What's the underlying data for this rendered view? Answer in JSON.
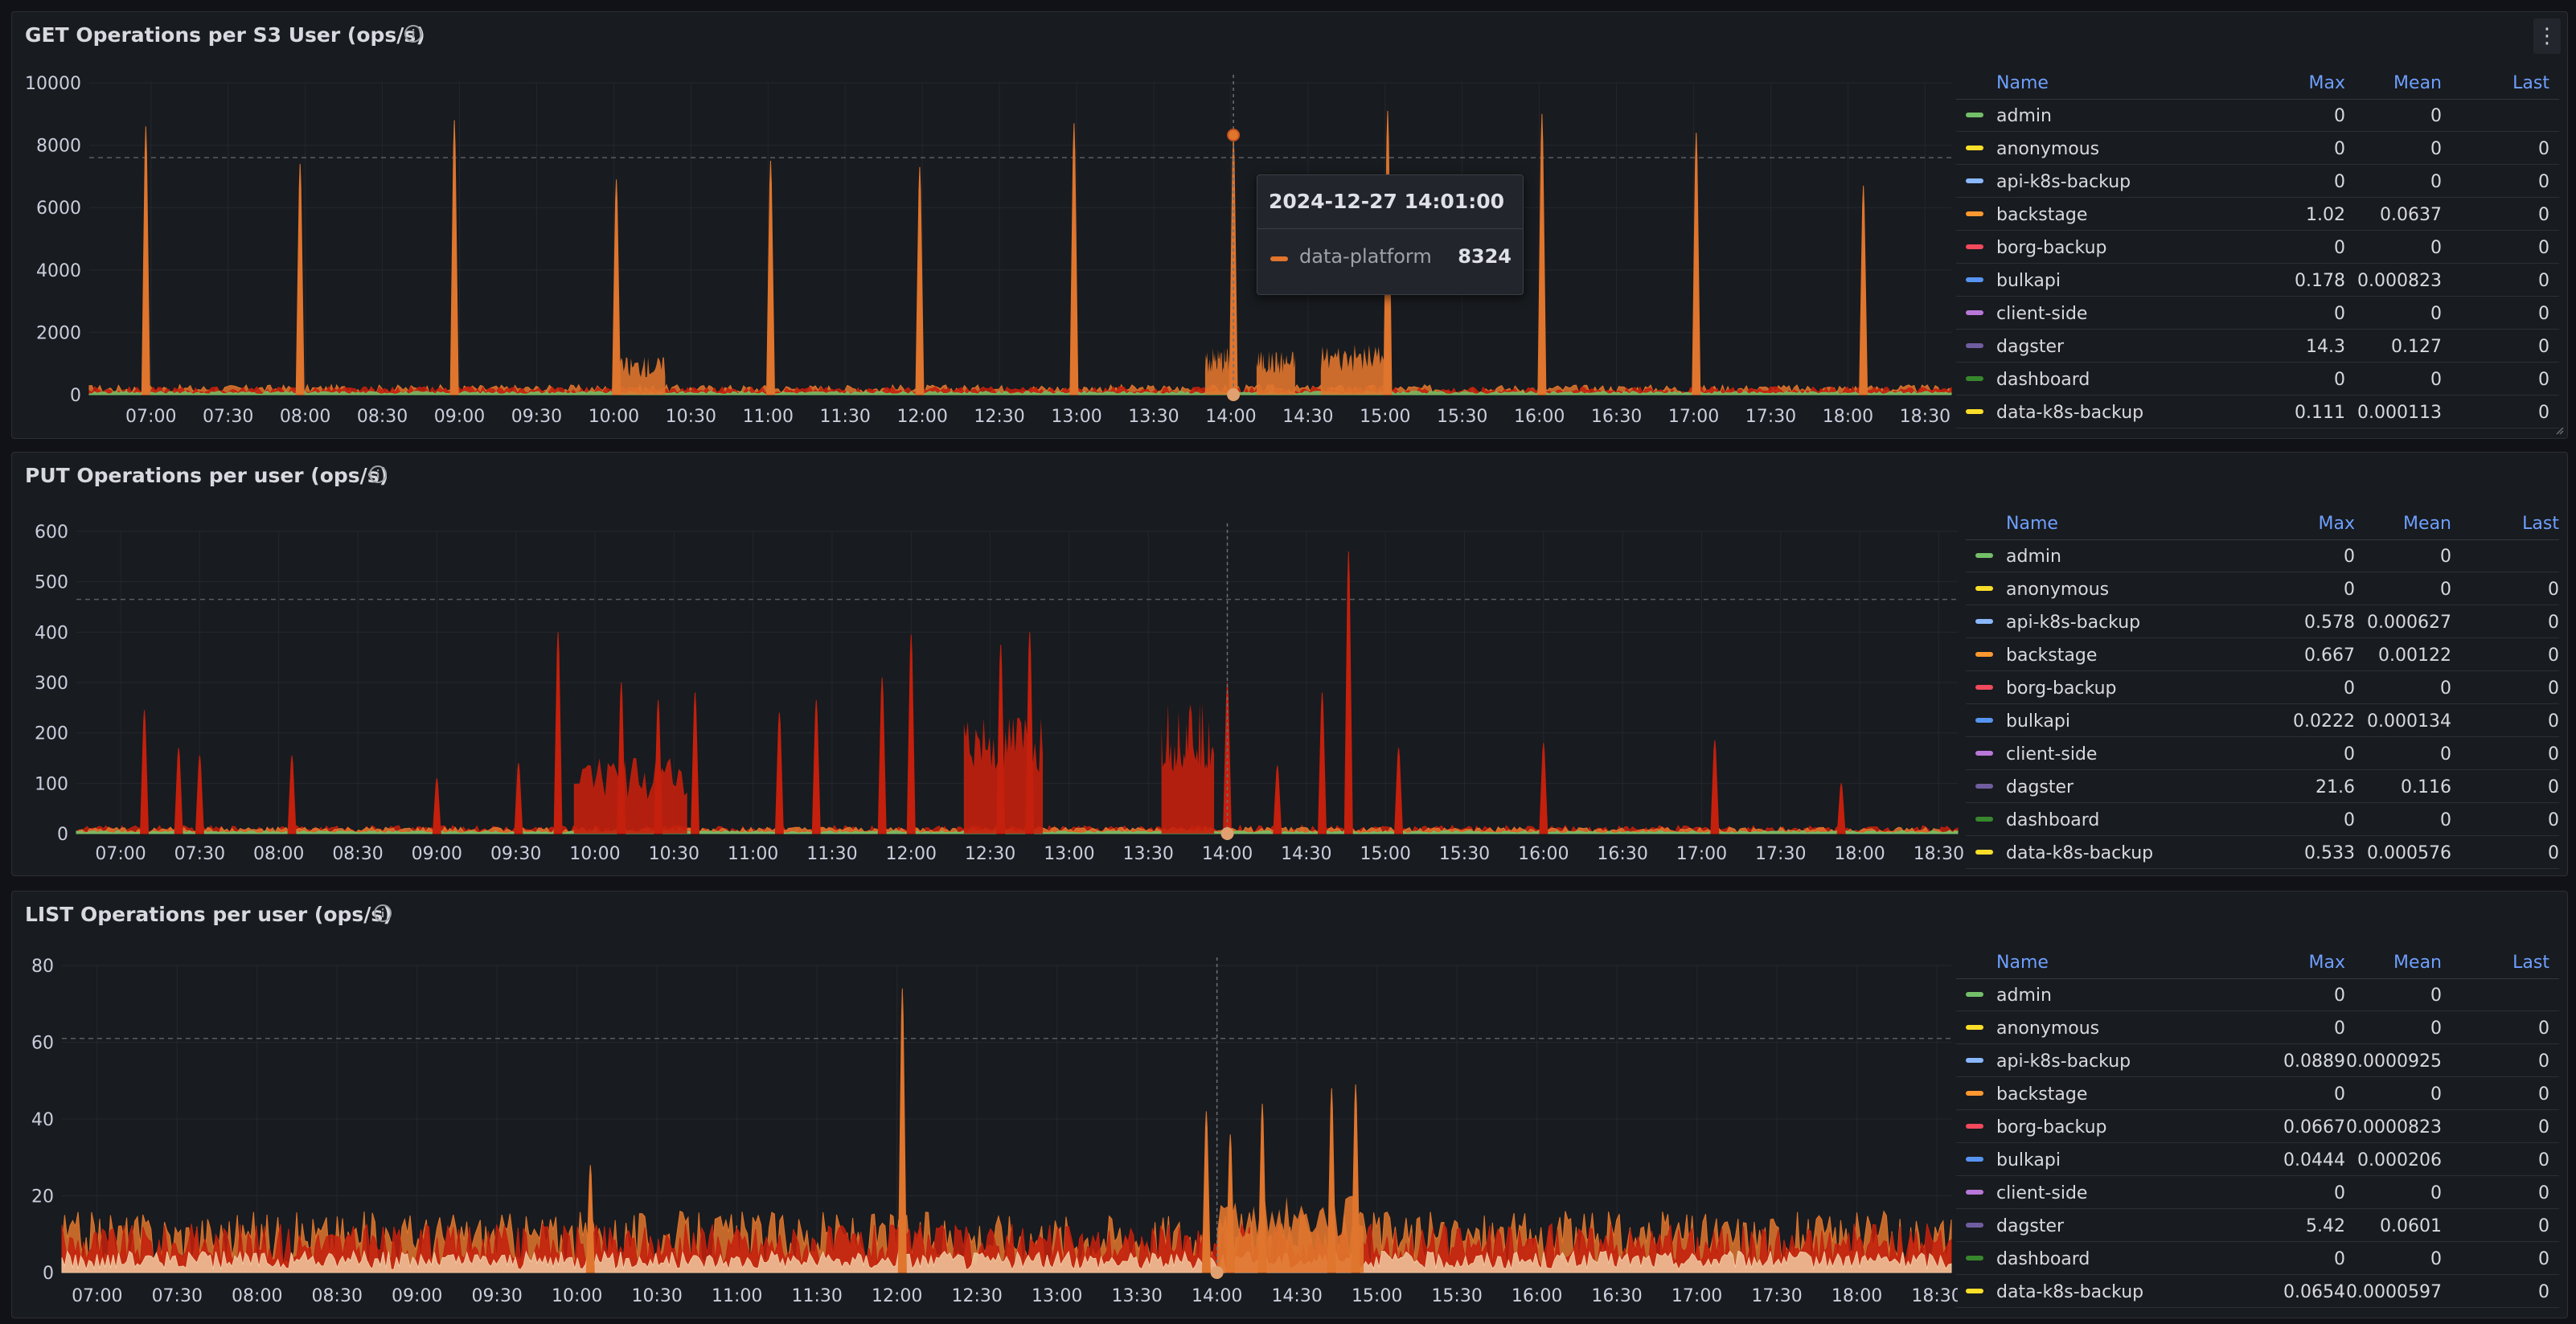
{
  "panels": [
    {
      "title": "GET Operations per S3 User (ops/s)",
      "legend_headers": {
        "name": "Name",
        "max": "Max",
        "mean": "Mean",
        "last": "Last"
      },
      "legend_rows": [
        {
          "name": "admin",
          "color": "#73bf69",
          "max": "0",
          "mean": "0",
          "last": ""
        },
        {
          "name": "anonymous",
          "color": "#fade2a",
          "max": "0",
          "mean": "0",
          "last": "0"
        },
        {
          "name": "api-k8s-backup",
          "color": "#8ab8ff",
          "max": "0",
          "mean": "0",
          "last": "0"
        },
        {
          "name": "backstage",
          "color": "#ff9830",
          "max": "1.02",
          "mean": "0.0637",
          "last": "0"
        },
        {
          "name": "borg-backup",
          "color": "#f2495c",
          "max": "0",
          "mean": "0",
          "last": "0"
        },
        {
          "name": "bulkapi",
          "color": "#5794f2",
          "max": "0.178",
          "mean": "0.000823",
          "last": "0"
        },
        {
          "name": "client-side",
          "color": "#b877d9",
          "max": "0",
          "mean": "0",
          "last": "0"
        },
        {
          "name": "dagster",
          "color": "#705da0",
          "max": "14.3",
          "mean": "0.127",
          "last": "0"
        },
        {
          "name": "dashboard",
          "color": "#37872d",
          "max": "0",
          "mean": "0",
          "last": "0"
        },
        {
          "name": "data-k8s-backup",
          "color": "#fade2a",
          "max": "0.111",
          "mean": "0.000113",
          "last": "0"
        }
      ]
    },
    {
      "title": "PUT Operations per user (ops/s)",
      "legend_headers": {
        "name": "Name",
        "max": "Max",
        "mean": "Mean",
        "last": "Last"
      },
      "legend_rows": [
        {
          "name": "admin",
          "color": "#73bf69",
          "max": "0",
          "mean": "0",
          "last": ""
        },
        {
          "name": "anonymous",
          "color": "#fade2a",
          "max": "0",
          "mean": "0",
          "last": "0"
        },
        {
          "name": "api-k8s-backup",
          "color": "#8ab8ff",
          "max": "0.578",
          "mean": "0.000627",
          "last": "0"
        },
        {
          "name": "backstage",
          "color": "#ff9830",
          "max": "0.667",
          "mean": "0.00122",
          "last": "0"
        },
        {
          "name": "borg-backup",
          "color": "#f2495c",
          "max": "0",
          "mean": "0",
          "last": "0"
        },
        {
          "name": "bulkapi",
          "color": "#5794f2",
          "max": "0.0222",
          "mean": "0.000134",
          "last": "0"
        },
        {
          "name": "client-side",
          "color": "#b877d9",
          "max": "0",
          "mean": "0",
          "last": "0"
        },
        {
          "name": "dagster",
          "color": "#705da0",
          "max": "21.6",
          "mean": "0.116",
          "last": "0"
        },
        {
          "name": "dashboard",
          "color": "#37872d",
          "max": "0",
          "mean": "0",
          "last": "0"
        },
        {
          "name": "data-k8s-backup",
          "color": "#fade2a",
          "max": "0.533",
          "mean": "0.000576",
          "last": "0"
        }
      ]
    },
    {
      "title": "LIST Operations per user (ops/s)",
      "legend_headers": {
        "name": "Name",
        "max": "Max",
        "mean": "Mean",
        "last": "Last"
      },
      "legend_rows": [
        {
          "name": "admin",
          "color": "#73bf69",
          "max": "0",
          "mean": "0",
          "last": ""
        },
        {
          "name": "anonymous",
          "color": "#fade2a",
          "max": "0",
          "mean": "0",
          "last": "0"
        },
        {
          "name": "api-k8s-backup",
          "color": "#8ab8ff",
          "max": "0.0889",
          "mean": "0.0000925",
          "last": "0"
        },
        {
          "name": "backstage",
          "color": "#ff9830",
          "max": "0",
          "mean": "0",
          "last": "0"
        },
        {
          "name": "borg-backup",
          "color": "#f2495c",
          "max": "0.0667",
          "mean": "0.0000823",
          "last": "0"
        },
        {
          "name": "bulkapi",
          "color": "#5794f2",
          "max": "0.0444",
          "mean": "0.000206",
          "last": "0"
        },
        {
          "name": "client-side",
          "color": "#b877d9",
          "max": "0",
          "mean": "0",
          "last": "0"
        },
        {
          "name": "dagster",
          "color": "#705da0",
          "max": "5.42",
          "mean": "0.0601",
          "last": "0"
        },
        {
          "name": "dashboard",
          "color": "#37872d",
          "max": "0",
          "mean": "0",
          "last": "0"
        },
        {
          "name": "data-k8s-backup",
          "color": "#fade2a",
          "max": "0.0654",
          "mean": "0.0000597",
          "last": "0"
        }
      ]
    }
  ],
  "tooltip": {
    "time": "2024-12-27 14:01:00",
    "series": "data-platform",
    "value": "8324",
    "color": "#e0752d"
  },
  "chart_data": [
    {
      "type": "area",
      "title": "GET Operations per S3 User (ops/s)",
      "x_ticks": [
        "07:00",
        "07:30",
        "08:00",
        "08:30",
        "09:00",
        "09:30",
        "10:00",
        "10:30",
        "11:00",
        "11:30",
        "12:00",
        "12:30",
        "13:00",
        "13:30",
        "14:00",
        "14:30",
        "15:00",
        "15:30",
        "16:00",
        "16:30",
        "17:00",
        "17:30",
        "18:00",
        "18:30"
      ],
      "y_ticks": [
        0,
        2000,
        4000,
        6000,
        8000,
        10000
      ],
      "ylim": [
        0,
        10000
      ],
      "x_range_hours": [
        6.6,
        18.67
      ],
      "threshold": 7600,
      "hover_x": "14:01",
      "baseline": 200,
      "peaks": [
        {
          "x": "06:58",
          "y": 8600
        },
        {
          "x": "07:58",
          "y": 7400
        },
        {
          "x": "08:58",
          "y": 8800
        },
        {
          "x": "10:01",
          "y": 6900
        },
        {
          "x": "11:01",
          "y": 7500
        },
        {
          "x": "11:59",
          "y": 7300
        },
        {
          "x": "12:59",
          "y": 8700
        },
        {
          "x": "14:01",
          "y": 8324
        },
        {
          "x": "15:01",
          "y": 9100
        },
        {
          "x": "16:01",
          "y": 9000
        },
        {
          "x": "17:01",
          "y": 8400
        },
        {
          "x": "18:06",
          "y": 6700
        }
      ],
      "bursts": [
        {
          "x": "10:01",
          "x2": "10:20",
          "y": 1200
        },
        {
          "x": "13:50",
          "x2": "14:00",
          "y": 1500
        },
        {
          "x": "14:10",
          "x2": "14:25",
          "y": 1400
        },
        {
          "x": "14:35",
          "x2": "15:00",
          "y": 1600
        }
      ],
      "series_colors": [
        "#e0752d",
        "#c4200d",
        "#73bf69"
      ]
    },
    {
      "type": "area",
      "title": "PUT Operations per user (ops/s)",
      "x_ticks": [
        "07:00",
        "07:30",
        "08:00",
        "08:30",
        "09:00",
        "09:30",
        "10:00",
        "10:30",
        "11:00",
        "11:30",
        "12:00",
        "12:30",
        "13:00",
        "13:30",
        "14:00",
        "14:30",
        "15:00",
        "15:30",
        "16:00",
        "16:30",
        "17:00",
        "17:30",
        "18:00",
        "18:30"
      ],
      "y_ticks": [
        0,
        100,
        200,
        300,
        400,
        500,
        600
      ],
      "ylim": [
        0,
        600
      ],
      "x_range_hours": [
        6.72,
        18.62
      ],
      "threshold": 465,
      "hover_x": "14:00",
      "baseline": 10,
      "peaks": [
        {
          "x": "07:09",
          "y": 245
        },
        {
          "x": "07:22",
          "y": 170
        },
        {
          "x": "07:30",
          "y": 155
        },
        {
          "x": "08:05",
          "y": 155
        },
        {
          "x": "09:00",
          "y": 110
        },
        {
          "x": "09:31",
          "y": 140
        },
        {
          "x": "09:46",
          "y": 400
        },
        {
          "x": "10:10",
          "y": 300
        },
        {
          "x": "10:24",
          "y": 265
        },
        {
          "x": "10:38",
          "y": 280
        },
        {
          "x": "11:10",
          "y": 240
        },
        {
          "x": "11:24",
          "y": 265
        },
        {
          "x": "11:49",
          "y": 310
        },
        {
          "x": "12:00",
          "y": 395
        },
        {
          "x": "12:34",
          "y": 375
        },
        {
          "x": "12:45",
          "y": 400
        },
        {
          "x": "14:00",
          "y": 300
        },
        {
          "x": "14:19",
          "y": 135
        },
        {
          "x": "14:36",
          "y": 280
        },
        {
          "x": "14:46",
          "y": 560
        },
        {
          "x": "15:05",
          "y": 170
        },
        {
          "x": "16:00",
          "y": 180
        },
        {
          "x": "17:05",
          "y": 185
        },
        {
          "x": "17:53",
          "y": 100
        }
      ],
      "bursts": [
        {
          "x": "09:52",
          "x2": "10:35",
          "y": 150
        },
        {
          "x": "12:20",
          "x2": "12:50",
          "y": 230
        },
        {
          "x": "13:35",
          "x2": "13:55",
          "y": 260
        }
      ],
      "series_colors": [
        "#c4200d",
        "#e0752d",
        "#73bf69"
      ]
    },
    {
      "type": "area",
      "title": "LIST Operations per user (ops/s)",
      "x_ticks": [
        "07:00",
        "07:30",
        "08:00",
        "08:30",
        "09:00",
        "09:30",
        "10:00",
        "10:30",
        "11:00",
        "11:30",
        "12:00",
        "12:30",
        "13:00",
        "13:30",
        "14:00",
        "14:30",
        "15:00",
        "15:30",
        "16:00",
        "16:30",
        "17:00",
        "17:30",
        "18:00",
        "18:30"
      ],
      "y_ticks": [
        0,
        20,
        40,
        60,
        80
      ],
      "ylim": [
        0,
        80
      ],
      "x_range_hours": [
        6.78,
        18.59
      ],
      "threshold": 61,
      "hover_x": "14:00",
      "baseline": 10,
      "peaks": [
        {
          "x": "10:05",
          "y": 28
        },
        {
          "x": "12:02",
          "y": 74
        },
        {
          "x": "13:56",
          "y": 42
        },
        {
          "x": "14:05",
          "y": 36
        },
        {
          "x": "14:17",
          "y": 44
        },
        {
          "x": "14:43",
          "y": 48
        },
        {
          "x": "14:52",
          "y": 49
        }
      ],
      "bursts": [
        {
          "x": "14:00",
          "x2": "14:55",
          "y": 20
        }
      ],
      "series_colors": [
        "#e0752d",
        "#c4200d",
        "#f0c8a0"
      ]
    }
  ]
}
